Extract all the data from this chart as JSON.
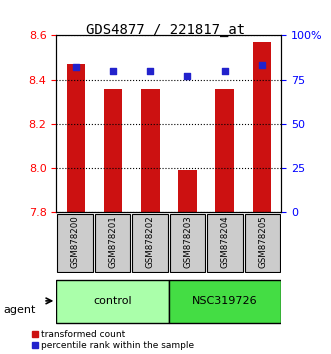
{
  "title": "GDS4877 / 221817_at",
  "categories": [
    "GSM878200",
    "GSM878201",
    "GSM878202",
    "GSM878203",
    "GSM878204",
    "GSM878205"
  ],
  "bar_values": [
    8.47,
    8.36,
    8.36,
    7.99,
    8.36,
    8.57
  ],
  "percentile_values": [
    82,
    80,
    80,
    77,
    80,
    83
  ],
  "ylim_left": [
    7.8,
    8.6
  ],
  "ylim_right": [
    0,
    100
  ],
  "yticks_left": [
    7.8,
    8.0,
    8.2,
    8.4,
    8.6
  ],
  "yticks_right": [
    0,
    25,
    50,
    75,
    100
  ],
  "ytick_labels_right": [
    "0",
    "25",
    "50",
    "75",
    "100%"
  ],
  "bar_color": "#cc1111",
  "dot_color": "#2222cc",
  "bar_width": 0.5,
  "groups": [
    {
      "label": "control",
      "indices": [
        0,
        1,
        2
      ],
      "color": "#aaffaa"
    },
    {
      "label": "NSC319726",
      "indices": [
        3,
        4,
        5
      ],
      "color": "#44dd44"
    }
  ],
  "agent_label": "agent",
  "legend": [
    {
      "label": "transformed count",
      "color": "#cc1111"
    },
    {
      "label": "percentile rank within the sample",
      "color": "#2222cc"
    }
  ],
  "title_fontsize": 10,
  "tick_fontsize": 8
}
